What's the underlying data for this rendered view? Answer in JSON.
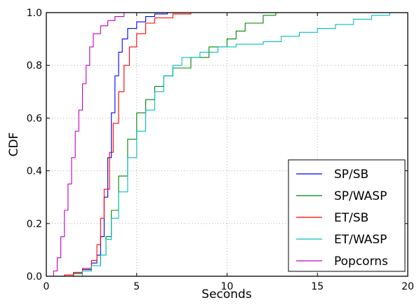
{
  "chart_data": {
    "type": "line",
    "title": "",
    "xlabel": "Seconds",
    "ylabel": "CDF",
    "xlim": [
      0,
      20
    ],
    "ylim": [
      0,
      1
    ],
    "xticks": [
      0,
      5,
      10,
      15,
      20
    ],
    "yticks": [
      0.0,
      0.2,
      0.4,
      0.6,
      0.8,
      1.0
    ],
    "xtick_labels": [
      "0",
      "5",
      "10",
      "15",
      "20"
    ],
    "ytick_labels": [
      "0.0",
      "0.2",
      "0.4",
      "0.6",
      "0.8",
      "1.0"
    ],
    "grid": true,
    "legend_position": "lower-right",
    "series": [
      {
        "name": "SP/SB",
        "color": "#0000ff",
        "points": [
          [
            1.0,
            0.0
          ],
          [
            1.5,
            0.01
          ],
          [
            2.0,
            0.025
          ],
          [
            2.5,
            0.05
          ],
          [
            2.8,
            0.08
          ],
          [
            3.0,
            0.15
          ],
          [
            3.2,
            0.3
          ],
          [
            3.4,
            0.45
          ],
          [
            3.6,
            0.62
          ],
          [
            3.8,
            0.76
          ],
          [
            4.0,
            0.85
          ],
          [
            4.2,
            0.9
          ],
          [
            4.5,
            0.94
          ],
          [
            5.0,
            0.965
          ],
          [
            5.5,
            0.985
          ],
          [
            6.0,
            0.995
          ],
          [
            6.7,
            1.0
          ]
        ]
      },
      {
        "name": "SP/WASP",
        "color": "#008000",
        "points": [
          [
            1.0,
            0.0
          ],
          [
            1.5,
            0.01
          ],
          [
            2.0,
            0.02
          ],
          [
            2.5,
            0.04
          ],
          [
            3.0,
            0.08
          ],
          [
            3.3,
            0.15
          ],
          [
            3.6,
            0.25
          ],
          [
            4.0,
            0.38
          ],
          [
            4.5,
            0.52
          ],
          [
            5.0,
            0.62
          ],
          [
            5.5,
            0.67
          ],
          [
            6.0,
            0.72
          ],
          [
            6.5,
            0.76
          ],
          [
            7.0,
            0.79
          ],
          [
            8.0,
            0.83
          ],
          [
            9.0,
            0.87
          ],
          [
            10.0,
            0.9
          ],
          [
            10.5,
            0.93
          ],
          [
            11.0,
            0.96
          ],
          [
            12.0,
            0.99
          ],
          [
            12.7,
            1.0
          ]
        ]
      },
      {
        "name": "ET/SB",
        "color": "#ff0000",
        "points": [
          [
            0.8,
            0.0
          ],
          [
            1.0,
            0.005
          ],
          [
            1.5,
            0.015
          ],
          [
            2.0,
            0.03
          ],
          [
            2.5,
            0.06
          ],
          [
            2.8,
            0.12
          ],
          [
            3.0,
            0.22
          ],
          [
            3.2,
            0.33
          ],
          [
            3.5,
            0.47
          ],
          [
            3.7,
            0.58
          ],
          [
            4.0,
            0.7
          ],
          [
            4.3,
            0.8
          ],
          [
            4.6,
            0.87
          ],
          [
            5.0,
            0.92
          ],
          [
            5.5,
            0.96
          ],
          [
            6.0,
            0.98
          ],
          [
            7.0,
            0.995
          ],
          [
            8.0,
            1.0
          ]
        ]
      },
      {
        "name": "ET/WASP",
        "color": "#00bfbf",
        "points": [
          [
            1.5,
            0.0
          ],
          [
            2.0,
            0.02
          ],
          [
            2.5,
            0.04
          ],
          [
            3.0,
            0.08
          ],
          [
            3.3,
            0.14
          ],
          [
            3.6,
            0.22
          ],
          [
            4.0,
            0.32
          ],
          [
            4.5,
            0.45
          ],
          [
            5.0,
            0.55
          ],
          [
            5.5,
            0.63
          ],
          [
            6.0,
            0.7
          ],
          [
            6.5,
            0.76
          ],
          [
            7.0,
            0.8
          ],
          [
            7.5,
            0.83
          ],
          [
            8.5,
            0.85
          ],
          [
            9.5,
            0.87
          ],
          [
            10.5,
            0.88
          ],
          [
            12.0,
            0.89
          ],
          [
            13.0,
            0.91
          ],
          [
            14.0,
            0.925
          ],
          [
            15.0,
            0.94
          ],
          [
            16.0,
            0.955
          ],
          [
            17.0,
            0.975
          ],
          [
            18.0,
            0.99
          ],
          [
            19.0,
            1.0
          ]
        ]
      },
      {
        "name": "Popcorns",
        "color": "#bf00bf",
        "points": [
          [
            0.2,
            0.0
          ],
          [
            0.4,
            0.02
          ],
          [
            0.6,
            0.07
          ],
          [
            0.8,
            0.15
          ],
          [
            1.0,
            0.25
          ],
          [
            1.2,
            0.35
          ],
          [
            1.4,
            0.45
          ],
          [
            1.6,
            0.55
          ],
          [
            1.8,
            0.63
          ],
          [
            2.0,
            0.73
          ],
          [
            2.2,
            0.8
          ],
          [
            2.4,
            0.87
          ],
          [
            2.6,
            0.92
          ],
          [
            3.0,
            0.95
          ],
          [
            3.4,
            0.97
          ],
          [
            3.8,
            0.985
          ],
          [
            4.3,
            1.0
          ]
        ]
      }
    ]
  }
}
